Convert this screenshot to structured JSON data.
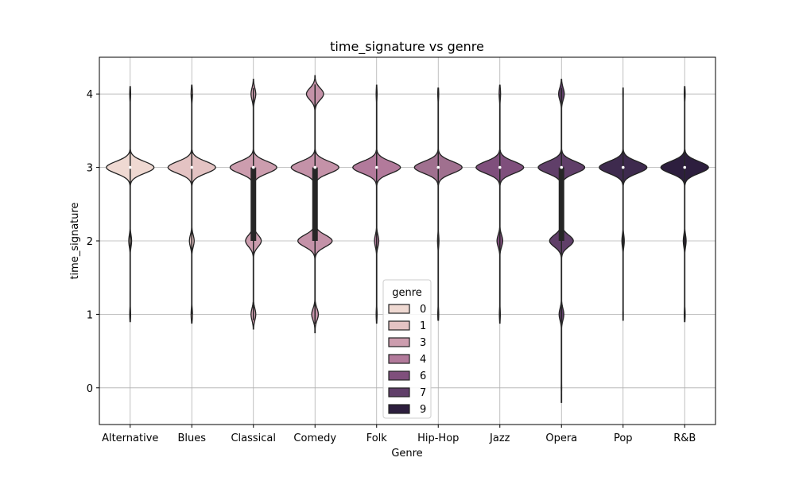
{
  "chart_data": {
    "type": "violin",
    "title": "time_signature vs genre",
    "xlabel": "Genre",
    "ylabel": "time_signature",
    "ylim": [
      -0.5,
      4.5
    ],
    "yticks": [
      0,
      1,
      2,
      3,
      4
    ],
    "grid": true,
    "categories": [
      "Alternative",
      "Blues",
      "Classical",
      "Comedy",
      "Folk",
      "Hip-Hop",
      "Jazz",
      "Opera",
      "Pop",
      "R&B"
    ],
    "legend": {
      "title": "genre",
      "placement": "lower-center",
      "entries": [
        {
          "label": "0",
          "color": "#efd9d2"
        },
        {
          "label": "1",
          "color": "#e4c3c3"
        },
        {
          "label": "3",
          "color": "#cc9dae"
        },
        {
          "label": "4",
          "color": "#b27a9b"
        },
        {
          "label": "6",
          "color": "#7f4f7c"
        },
        {
          "label": "7",
          "color": "#603f69"
        },
        {
          "label": "9",
          "color": "#2d1e3e"
        }
      ]
    },
    "series": [
      {
        "category": "Alternative",
        "color": "#efd9d2",
        "min": 0.9,
        "max": 4.1,
        "q1": 3,
        "median": 3,
        "q3": 3,
        "density": [
          {
            "y": 1,
            "w": 0.02
          },
          {
            "y": 2,
            "w": 0.06
          },
          {
            "y": 3,
            "w": 1.0
          },
          {
            "y": 4,
            "w": 0.02
          }
        ]
      },
      {
        "category": "Blues",
        "color": "#e4c3c3",
        "min": 0.88,
        "max": 4.12,
        "q1": 3,
        "median": 3,
        "q3": 3,
        "density": [
          {
            "y": 1,
            "w": 0.03
          },
          {
            "y": 2,
            "w": 0.1
          },
          {
            "y": 3,
            "w": 1.0
          },
          {
            "y": 4,
            "w": 0.03
          }
        ]
      },
      {
        "category": "Classical",
        "color": "#cc9dae",
        "min": 0.8,
        "max": 4.2,
        "q1": 2,
        "median": 3,
        "q3": 3,
        "density": [
          {
            "y": 1,
            "w": 0.1
          },
          {
            "y": 2,
            "w": 0.33
          },
          {
            "y": 3,
            "w": 0.98
          },
          {
            "y": 4,
            "w": 0.1
          }
        ]
      },
      {
        "category": "Comedy",
        "color": "#c492a8",
        "min": 0.75,
        "max": 4.25,
        "q1": 2,
        "median": 3,
        "q3": 3,
        "density": [
          {
            "y": 1,
            "w": 0.14
          },
          {
            "y": 2,
            "w": 0.72
          },
          {
            "y": 3,
            "w": 1.0
          },
          {
            "y": 4,
            "w": 0.36
          }
        ]
      },
      {
        "category": "Folk",
        "color": "#b27a9b",
        "min": 0.88,
        "max": 4.12,
        "q1": 3,
        "median": 3,
        "q3": 3,
        "density": [
          {
            "y": 1,
            "w": 0.02
          },
          {
            "y": 2,
            "w": 0.09
          },
          {
            "y": 3,
            "w": 1.0
          },
          {
            "y": 4,
            "w": 0.02
          }
        ]
      },
      {
        "category": "Hip-Hop",
        "color": "#a0708f",
        "min": 0.92,
        "max": 4.08,
        "q1": 3,
        "median": 3,
        "q3": 3,
        "density": [
          {
            "y": 1,
            "w": 0.02
          },
          {
            "y": 2,
            "w": 0.03
          },
          {
            "y": 3,
            "w": 1.0
          },
          {
            "y": 4,
            "w": 0.02
          }
        ]
      },
      {
        "category": "Jazz",
        "color": "#7f4f7c",
        "min": 0.88,
        "max": 4.12,
        "q1": 3,
        "median": 3,
        "q3": 3,
        "density": [
          {
            "y": 1,
            "w": 0.02
          },
          {
            "y": 2,
            "w": 0.12
          },
          {
            "y": 3,
            "w": 1.0
          },
          {
            "y": 4,
            "w": 0.03
          }
        ]
      },
      {
        "category": "Opera",
        "color": "#603f69",
        "min": -0.2,
        "max": 4.2,
        "q1": 2,
        "median": 3,
        "q3": 3,
        "density": [
          {
            "y": 0,
            "w": 0.01
          },
          {
            "y": 1,
            "w": 0.1
          },
          {
            "y": 2,
            "w": 0.5
          },
          {
            "y": 3,
            "w": 0.98
          },
          {
            "y": 4,
            "w": 0.12
          }
        ]
      },
      {
        "category": "Pop",
        "color": "#3e2a4e",
        "min": 0.92,
        "max": 4.08,
        "q1": 3,
        "median": 3,
        "q3": 3,
        "density": [
          {
            "y": 1,
            "w": 0.01
          },
          {
            "y": 2,
            "w": 0.05
          },
          {
            "y": 3,
            "w": 1.0
          },
          {
            "y": 4,
            "w": 0.01
          }
        ]
      },
      {
        "category": "R&B",
        "color": "#2d1e3e",
        "min": 0.9,
        "max": 4.1,
        "q1": 3,
        "median": 3,
        "q3": 3,
        "density": [
          {
            "y": 1,
            "w": 0.02
          },
          {
            "y": 2,
            "w": 0.06
          },
          {
            "y": 3,
            "w": 1.0
          },
          {
            "y": 4,
            "w": 0.02
          }
        ]
      }
    ]
  }
}
